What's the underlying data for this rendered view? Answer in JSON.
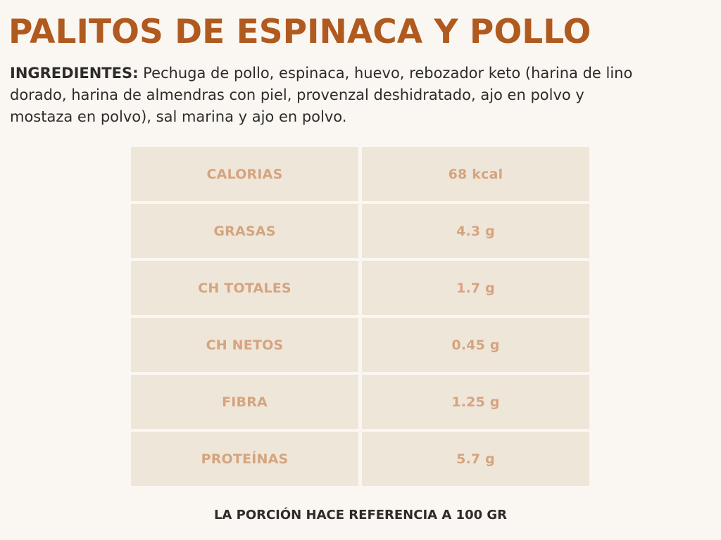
{
  "title": "PALITOS DE ESPINACA Y POLLO",
  "ingredients": {
    "label": "INGREDIENTES:",
    "text": " Pechuga de pollo, espinaca, huevo, rebozador keto (harina de lino dorado, harina de almendras con piel, provenzal deshidratado, ajo en polvo y mostaza en polvo), sal marina y ajo en polvo."
  },
  "nutrition": [
    {
      "name": "CALORIAS",
      "value": "68 kcal"
    },
    {
      "name": "GRASAS",
      "value": "4.3 g"
    },
    {
      "name": "CH TOTALES",
      "value": "1.7 g"
    },
    {
      "name": "CH NETOS",
      "value": "0.45 g"
    },
    {
      "name": "FIBRA",
      "value": "1.25 g"
    },
    {
      "name": "PROTEÍNAS",
      "value": "5.7 g"
    }
  ],
  "footer_note": "LA PORCIÓN HACE REFERENCIA A 100 GR",
  "colors": {
    "background": "#faf7f2",
    "title": "#b05a1f",
    "body_text": "#2e2b29",
    "cell_background": "#efe6da",
    "cell_text": "#d5a47e"
  }
}
